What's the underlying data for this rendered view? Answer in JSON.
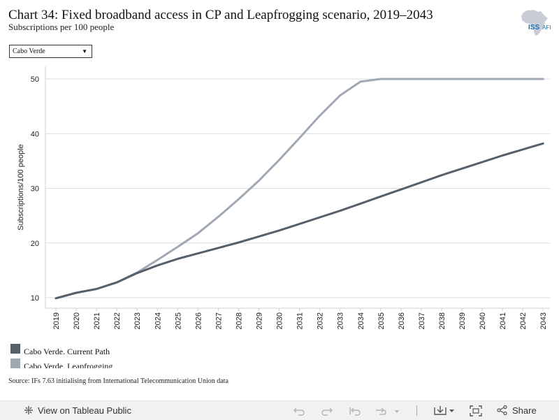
{
  "header": {
    "title": "Chart 34: Fixed broadband access in CP and Leapfrogging scenario, 2019–2043",
    "subtitle": "Subscriptions per 100 people"
  },
  "logo": {
    "text_left": "ISS",
    "text_right": "AFI"
  },
  "filter": {
    "selected": "Cabo Verde"
  },
  "chart_data": {
    "type": "line",
    "ylabel": "Subscriptions/100 people",
    "xlabel": "",
    "ylim": [
      8,
      52
    ],
    "yticks": [
      10,
      20,
      30,
      40,
      50
    ],
    "grid": true,
    "x": [
      "2019",
      "2020",
      "2021",
      "2022",
      "2023",
      "2024",
      "2025",
      "2026",
      "2027",
      "2028",
      "2029",
      "2030",
      "2031",
      "2032",
      "2033",
      "2034",
      "2035",
      "2036",
      "2037",
      "2038",
      "2039",
      "2040",
      "2041",
      "2042",
      "2043"
    ],
    "series": [
      {
        "name": "Cabo Verde. Current Path",
        "color": "#56606b",
        "values": [
          9.9,
          10.9,
          11.6,
          12.8,
          14.5,
          15.9,
          17.1,
          18.1,
          19.1,
          20.1,
          21.2,
          22.3,
          23.5,
          24.7,
          25.9,
          27.2,
          28.5,
          29.8,
          31.1,
          32.4,
          33.6,
          34.8,
          36.0,
          37.1,
          38.2
        ]
      },
      {
        "name": "Cabo Verde. Leapfrogging",
        "color": "#a0a8b3",
        "values": [
          9.9,
          10.9,
          11.6,
          12.8,
          14.6,
          16.9,
          19.3,
          21.8,
          24.8,
          28.0,
          31.4,
          35.2,
          39.2,
          43.3,
          47.0,
          49.5,
          50.0,
          50.0,
          50.0,
          50.0,
          50.0,
          50.0,
          50.0,
          50.0,
          50.0
        ]
      }
    ]
  },
  "source": "Source: IFs 7.63 initialising from International Telecommunication Union data",
  "toolbar": {
    "view_label": "View on Tableau Public",
    "share_label": "Share",
    "icons": [
      "tableau-icon",
      "undo-icon",
      "redo-icon",
      "revert-icon",
      "refresh-icon",
      "download-icon",
      "fullscreen-icon",
      "share-icon"
    ]
  }
}
